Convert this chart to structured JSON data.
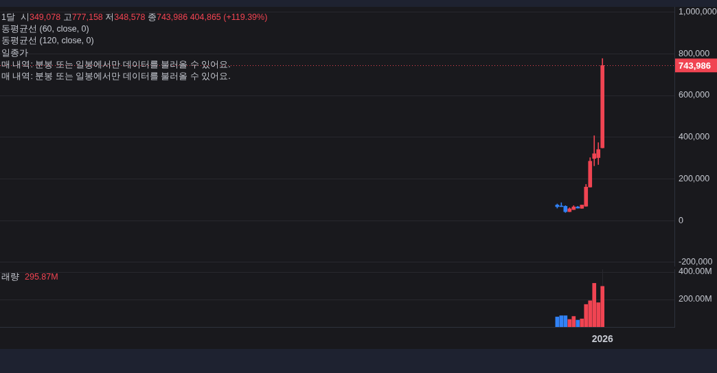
{
  "chart_data": [
    {
      "type": "candlestick",
      "title": "1달",
      "annotations": [
        "시349,078 고777,158 저348,578 종743,986 404,865 (+119.39%)",
        "동평균선 (60, close, 0)",
        "동평균선 (120, close, 0)",
        "일종가",
        "매 내역: 분봉 또는 일봉에서만 데이터를 불러올 수 있어요.",
        "매 내역: 분봉 또는 일봉에서만 데이터를 불러올 수 있어요."
      ],
      "categories": [
        null,
        null,
        null,
        null,
        null,
        null,
        null,
        null,
        null,
        null,
        null,
        null,
        null,
        null,
        null,
        null,
        null,
        null,
        null,
        null,
        null,
        null,
        null,
        null,
        null,
        null,
        null,
        null,
        null,
        null,
        null,
        null,
        null,
        null,
        null,
        null,
        null,
        null,
        null,
        null,
        null,
        null,
        null,
        null,
        null,
        null,
        null,
        null,
        null,
        null,
        null,
        null,
        null,
        null,
        null,
        null,
        null,
        null,
        null,
        null,
        null,
        null,
        null,
        null,
        null,
        null,
        null,
        null,
        null,
        null,
        null,
        null,
        null,
        null,
        null,
        null,
        null,
        null,
        null,
        null,
        null,
        null,
        null,
        null,
        null,
        null,
        null,
        null,
        null,
        null,
        null,
        null,
        null,
        null,
        null,
        null,
        null,
        null,
        null,
        null,
        null,
        null,
        null,
        null,
        null,
        null,
        null,
        null,
        null,
        null,
        null,
        null,
        null,
        null,
        null,
        null,
        null,
        null,
        null,
        null,
        null,
        null,
        null,
        null,
        null,
        null,
        null,
        null,
        null,
        null,
        null,
        null,
        null,
        null,
        null,
        null,
        null,
        null,
        null,
        null,
        null,
        null,
        null,
        null,
        null,
        null,
        null,
        null,
        null,
        null,
        null,
        null,
        null,
        null,
        null,
        null,
        null,
        null,
        null,
        null,
        null,
        null,
        null,
        null
      ],
      "ohlc": [
        null,
        null,
        null,
        null,
        null,
        null,
        null,
        null,
        null,
        null,
        null,
        null,
        null,
        null,
        null,
        null,
        null,
        null,
        null,
        null,
        null,
        null,
        null,
        null,
        null,
        null,
        null,
        null,
        null,
        null,
        null,
        null,
        null,
        null,
        null,
        null,
        null,
        null,
        null,
        null,
        null,
        null,
        null,
        null,
        null,
        null,
        null,
        null,
        null,
        null,
        null,
        null,
        null,
        null,
        null,
        null,
        null,
        null,
        null,
        null,
        null,
        null,
        null,
        null,
        null,
        null,
        null,
        null,
        null,
        null,
        null,
        null,
        null,
        null,
        null,
        null,
        null,
        null,
        null,
        null,
        null,
        null,
        null,
        null,
        null,
        null,
        null,
        null,
        null,
        null,
        null,
        null,
        null,
        null,
        null,
        null,
        null,
        null,
        null,
        null,
        null,
        null,
        null,
        null,
        null,
        null,
        null,
        null,
        null,
        null,
        null,
        null,
        null,
        null,
        null,
        null,
        null,
        null,
        null,
        null,
        null,
        null,
        null,
        null,
        null,
        null,
        null,
        null,
        null,
        null,
        null,
        null,
        null,
        null,
        null,
        [
          75000,
          80000,
          60000,
          67000
        ],
        [
          69000,
          86000,
          67000,
          67000
        ],
        [
          69000,
          72000,
          39000,
          43000
        ],
        [
          43000,
          62000,
          43000,
          57000
        ],
        [
          53000,
          72000,
          53000,
          66000
        ],
        [
          66000,
          69000,
          60000,
          60000
        ],
        [
          59000,
          75000,
          59000,
          75000
        ],
        [
          69000,
          174000,
          69000,
          161000
        ],
        [
          161000,
          302000,
          161000,
          285000
        ],
        [
          298000,
          407000,
          263000,
          321000
        ],
        [
          302000,
          374000,
          269000,
          341000
        ],
        [
          349078,
          777158,
          348578,
          743986
        ],
        null,
        null,
        null,
        null,
        null,
        null,
        null,
        null,
        null,
        null,
        null,
        null,
        null,
        null,
        null,
        null,
        null
      ],
      "colors": [
        null,
        null,
        null,
        null,
        null,
        null,
        null,
        null,
        null,
        null,
        null,
        null,
        null,
        null,
        null,
        null,
        null,
        null,
        null,
        null,
        null,
        null,
        null,
        null,
        null,
        null,
        null,
        null,
        null,
        null,
        null,
        null,
        null,
        null,
        null,
        null,
        null,
        null,
        null,
        null,
        null,
        null,
        null,
        null,
        null,
        null,
        null,
        null,
        null,
        null,
        null,
        null,
        null,
        null,
        null,
        null,
        null,
        null,
        null,
        null,
        null,
        null,
        null,
        null,
        null,
        null,
        null,
        null,
        null,
        null,
        null,
        null,
        null,
        null,
        null,
        null,
        null,
        null,
        null,
        null,
        null,
        null,
        null,
        null,
        null,
        null,
        null,
        null,
        null,
        null,
        null,
        null,
        null,
        null,
        null,
        null,
        null,
        null,
        null,
        null,
        null,
        null,
        null,
        null,
        null,
        null,
        null,
        null,
        null,
        null,
        null,
        null,
        null,
        null,
        null,
        null,
        null,
        null,
        null,
        null,
        null,
        null,
        null,
        null,
        null,
        null,
        null,
        null,
        null,
        null,
        null,
        null,
        null,
        null,
        null,
        "#3182f6",
        "#3182f6",
        "#3182f6",
        "#f04452",
        "#f04452",
        "#3182f6",
        "#f04452",
        "#f04452",
        "#f04452",
        "#f04452",
        "#f04452",
        "#f04452",
        null,
        null,
        null,
        null,
        null,
        null,
        null,
        null,
        null,
        null,
        null,
        null,
        null,
        null,
        null,
        null,
        null
      ],
      "ylim": [
        -220000,
        1025000
      ],
      "yticks": [
        {
          "value": -200000,
          "label": "-200,000"
        },
        {
          "value": 0,
          "label": "0"
        },
        {
          "value": 200000,
          "label": "200,000"
        },
        {
          "value": 400000,
          "label": "400,000"
        },
        {
          "value": 600000,
          "label": "600,000"
        },
        {
          "value": 800000,
          "label": "800,000"
        },
        {
          "value": 1000000,
          "label": "1,000,000"
        }
      ],
      "ref_lines": [
        {
          "axis": "y",
          "value": 743986,
          "label": "743,986",
          "color": "#f04452",
          "line_style": "dotted"
        }
      ],
      "grid": "y",
      "tick_labels": "y"
    },
    {
      "type": "bar",
      "title": "래량",
      "annotations": [
        "295.87M"
      ],
      "categories": [
        null,
        null,
        null,
        null,
        null,
        null,
        null,
        null,
        null,
        null,
        null,
        null,
        null,
        null,
        null,
        null,
        null,
        null,
        null,
        null,
        null,
        null,
        null,
        null,
        null,
        null,
        null,
        null,
        null,
        null,
        null,
        null,
        null,
        null,
        null,
        null,
        null,
        null,
        null,
        null,
        null,
        null,
        null,
        null,
        null,
        null,
        null,
        null,
        null,
        null,
        null,
        null,
        null,
        null,
        null,
        null,
        null,
        null,
        null,
        null,
        null,
        null,
        null,
        null,
        null,
        null,
        null,
        null,
        null,
        null,
        null,
        null,
        null,
        null,
        null,
        null,
        null,
        null,
        null,
        null,
        null,
        null,
        null,
        null,
        null,
        null,
        null,
        null,
        null,
        null,
        null,
        null,
        null,
        null,
        null,
        null,
        null,
        null,
        null,
        null,
        null,
        null,
        null,
        null,
        null,
        null,
        null,
        null,
        null,
        null,
        null,
        null,
        null,
        null,
        null,
        null,
        null,
        null,
        null,
        null,
        null,
        null,
        null,
        null,
        null,
        null,
        null,
        null,
        null,
        null,
        null,
        null,
        null,
        null,
        null,
        null,
        null,
        null,
        null,
        null,
        null,
        null,
        null,
        null,
        null,
        null,
        "2026",
        null,
        null,
        null,
        null,
        null,
        null,
        null,
        null,
        null,
        null,
        null,
        null,
        null,
        null,
        null,
        null,
        null
      ],
      "values": [
        null,
        null,
        null,
        null,
        null,
        null,
        null,
        null,
        null,
        null,
        null,
        null,
        null,
        null,
        null,
        null,
        null,
        null,
        null,
        null,
        null,
        null,
        null,
        null,
        null,
        null,
        null,
        null,
        null,
        null,
        null,
        null,
        null,
        null,
        null,
        null,
        null,
        null,
        null,
        null,
        null,
        null,
        null,
        null,
        null,
        null,
        null,
        null,
        null,
        null,
        null,
        null,
        null,
        null,
        null,
        null,
        null,
        null,
        null,
        null,
        null,
        null,
        null,
        null,
        null,
        null,
        null,
        null,
        null,
        null,
        null,
        null,
        null,
        null,
        null,
        null,
        null,
        null,
        null,
        null,
        null,
        null,
        null,
        null,
        null,
        null,
        null,
        null,
        null,
        null,
        null,
        null,
        null,
        null,
        null,
        null,
        null,
        null,
        null,
        null,
        null,
        null,
        null,
        null,
        null,
        null,
        null,
        null,
        null,
        null,
        null,
        null,
        null,
        null,
        null,
        null,
        null,
        null,
        null,
        null,
        null,
        null,
        null,
        null,
        null,
        null,
        null,
        null,
        null,
        null,
        null,
        null,
        null,
        null,
        null,
        73000000,
        82000000,
        82000000,
        55000000,
        77000000,
        50000000,
        59000000,
        164000000,
        191000000,
        318000000,
        177000000,
        295870000,
        null,
        null,
        null,
        null,
        null,
        null,
        null,
        null,
        null,
        null,
        null,
        null,
        null,
        null,
        null,
        null,
        null
      ],
      "colors": [
        null,
        null,
        null,
        null,
        null,
        null,
        null,
        null,
        null,
        null,
        null,
        null,
        null,
        null,
        null,
        null,
        null,
        null,
        null,
        null,
        null,
        null,
        null,
        null,
        null,
        null,
        null,
        null,
        null,
        null,
        null,
        null,
        null,
        null,
        null,
        null,
        null,
        null,
        null,
        null,
        null,
        null,
        null,
        null,
        null,
        null,
        null,
        null,
        null,
        null,
        null,
        null,
        null,
        null,
        null,
        null,
        null,
        null,
        null,
        null,
        null,
        null,
        null,
        null,
        null,
        null,
        null,
        null,
        null,
        null,
        null,
        null,
        null,
        null,
        null,
        null,
        null,
        null,
        null,
        null,
        null,
        null,
        null,
        null,
        null,
        null,
        null,
        null,
        null,
        null,
        null,
        null,
        null,
        null,
        null,
        null,
        null,
        null,
        null,
        null,
        null,
        null,
        null,
        null,
        null,
        null,
        null,
        null,
        null,
        null,
        null,
        null,
        null,
        null,
        null,
        null,
        null,
        null,
        null,
        null,
        null,
        null,
        null,
        null,
        null,
        null,
        null,
        null,
        null,
        null,
        null,
        null,
        null,
        null,
        null,
        "#3182f6",
        "#3182f6",
        "#3182f6",
        "#f04452",
        "#f04452",
        "#3182f6",
        "#f04452",
        "#f04452",
        "#f04452",
        "#f04452",
        "#f04452",
        "#f04452",
        null,
        null,
        null,
        null,
        null,
        null,
        null,
        null,
        null,
        null,
        null,
        null,
        null,
        null,
        null,
        null,
        null
      ],
      "ylim": [
        0,
        420000000
      ],
      "yticks": [
        {
          "value": 200000000,
          "label": "200.00M"
        },
        {
          "value": 400000000,
          "label": "400.00M"
        }
      ],
      "grid": true
    }
  ]
}
